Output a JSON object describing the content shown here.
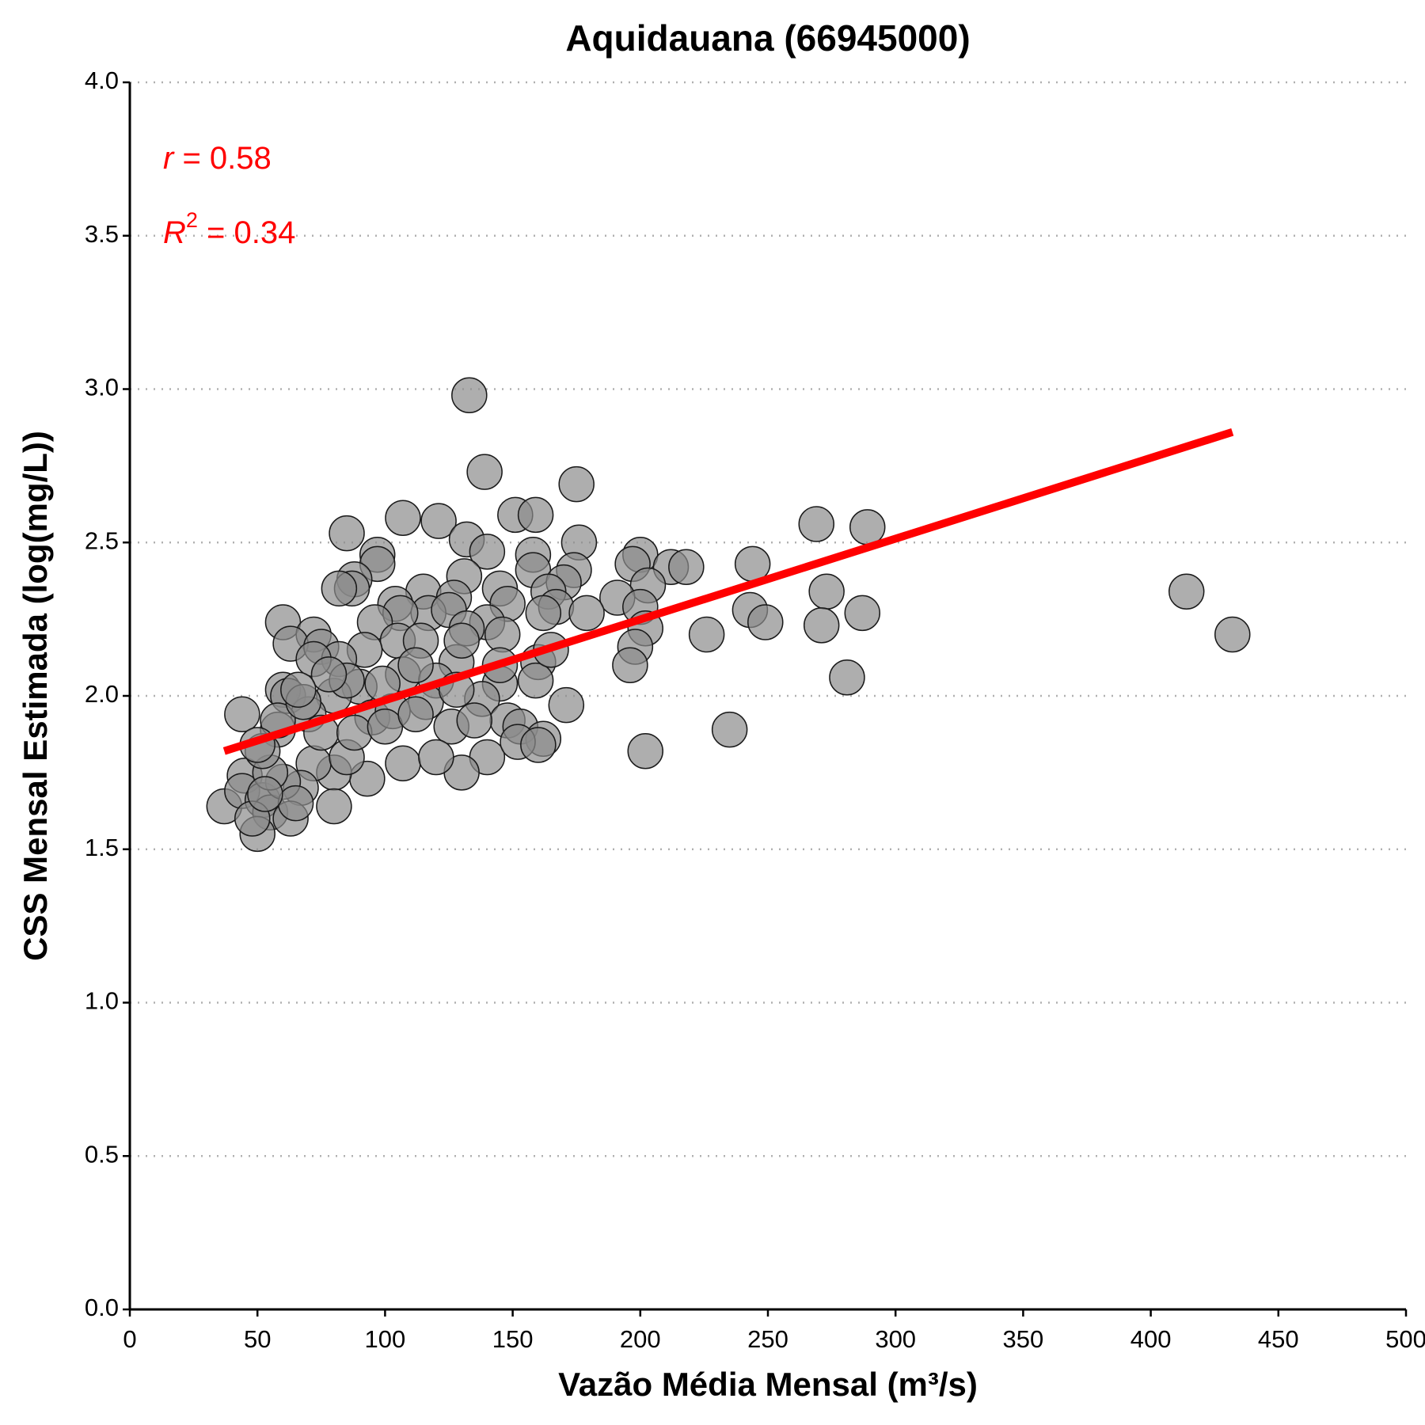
{
  "chart_data": {
    "type": "scatter",
    "title": "Aquidauana (66945000)",
    "x_label": "Vazão Média Mensal (m³/s)",
    "y_label": "CSS Mensal Estimada (log(mg/L))",
    "xlim": [
      0,
      500
    ],
    "ylim": [
      0,
      4
    ],
    "xticks": [
      0,
      50,
      100,
      150,
      200,
      250,
      300,
      350,
      400,
      450,
      500
    ],
    "yticks": [
      {
        "value": 0,
        "label": "0.0"
      },
      0.5,
      {
        "value": 1,
        "label": "1.0"
      },
      1.5,
      {
        "value": 2,
        "label": "2.0"
      },
      2.5,
      {
        "value": 3,
        "label": "3.0"
      },
      3.5,
      {
        "value": 4,
        "label": "4.0"
      }
    ],
    "grid": true,
    "points": {
      "color": "#8c8c8c",
      "x": [
        133,
        139,
        175,
        151,
        159,
        107,
        121,
        85,
        132,
        176,
        140,
        97,
        158,
        200,
        97,
        197,
        244,
        212,
        218,
        174,
        158,
        131,
        88,
        170,
        87,
        82,
        203,
        115,
        145,
        164,
        414,
        273,
        191,
        127,
        104,
        200,
        167,
        148,
        117,
        106,
        162,
        179,
        287,
        243,
        125,
        249,
        269,
        289,
        60,
        271,
        140,
        132,
        96,
        202,
        226,
        432,
        72,
        146,
        105,
        63,
        114,
        75,
        92,
        82,
        198,
        160,
        128,
        72,
        196,
        107,
        159,
        281,
        145,
        60,
        62,
        90,
        120,
        138,
        171,
        116,
        80,
        44,
        70,
        95,
        148,
        103,
        126,
        58,
        153,
        162,
        235,
        202,
        140,
        130,
        107,
        120,
        93,
        80,
        72,
        85,
        67,
        45,
        37,
        44,
        52,
        55,
        50,
        63,
        60,
        48,
        65,
        80,
        55,
        52,
        58,
        68,
        75,
        88,
        100,
        112,
        135,
        152,
        160,
        112,
        99,
        130,
        145,
        165,
        128,
        85,
        78,
        66,
        50,
        53
      ],
      "y": [
        2.98,
        2.73,
        2.69,
        2.59,
        2.59,
        2.58,
        2.57,
        2.53,
        2.51,
        2.5,
        2.47,
        2.46,
        2.46,
        2.46,
        2.43,
        2.43,
        2.43,
        2.42,
        2.42,
        2.41,
        2.41,
        2.39,
        2.38,
        2.37,
        2.35,
        2.35,
        2.36,
        2.34,
        2.35,
        2.34,
        2.34,
        2.34,
        2.32,
        2.32,
        2.3,
        2.29,
        2.29,
        2.3,
        2.27,
        2.27,
        2.27,
        2.27,
        2.27,
        2.28,
        2.28,
        2.24,
        2.56,
        2.55,
        2.24,
        2.23,
        2.24,
        2.22,
        2.24,
        2.22,
        2.2,
        2.2,
        2.2,
        2.2,
        2.18,
        2.17,
        2.18,
        2.16,
        2.15,
        2.12,
        2.16,
        2.11,
        2.11,
        2.12,
        2.1,
        2.07,
        2.05,
        2.06,
        2.04,
        2.02,
        2.0,
        2.03,
        2.05,
        1.99,
        1.97,
        1.98,
        2.0,
        1.94,
        1.94,
        1.93,
        1.92,
        1.95,
        1.9,
        1.89,
        1.9,
        1.86,
        1.89,
        1.82,
        1.8,
        1.75,
        1.78,
        1.8,
        1.73,
        1.75,
        1.78,
        1.8,
        1.7,
        1.74,
        1.64,
        1.69,
        1.66,
        1.62,
        1.55,
        1.6,
        1.72,
        1.6,
        1.65,
        1.64,
        1.75,
        1.82,
        1.92,
        1.98,
        1.88,
        1.88,
        1.9,
        1.94,
        1.92,
        1.85,
        1.84,
        2.1,
        2.04,
        2.18,
        2.1,
        2.15,
        2.02,
        2.05,
        2.07,
        2.02,
        1.84,
        1.68
      ]
    },
    "fit_line": {
      "color": "#ff0000",
      "x": [
        37,
        432
      ],
      "y": [
        1.82,
        2.86
      ]
    },
    "annotations": [
      {
        "symbol": "r",
        "text": " = 0.58"
      },
      {
        "symbol": "R",
        "superscript": "2",
        "text": " = 0.34"
      }
    ]
  }
}
